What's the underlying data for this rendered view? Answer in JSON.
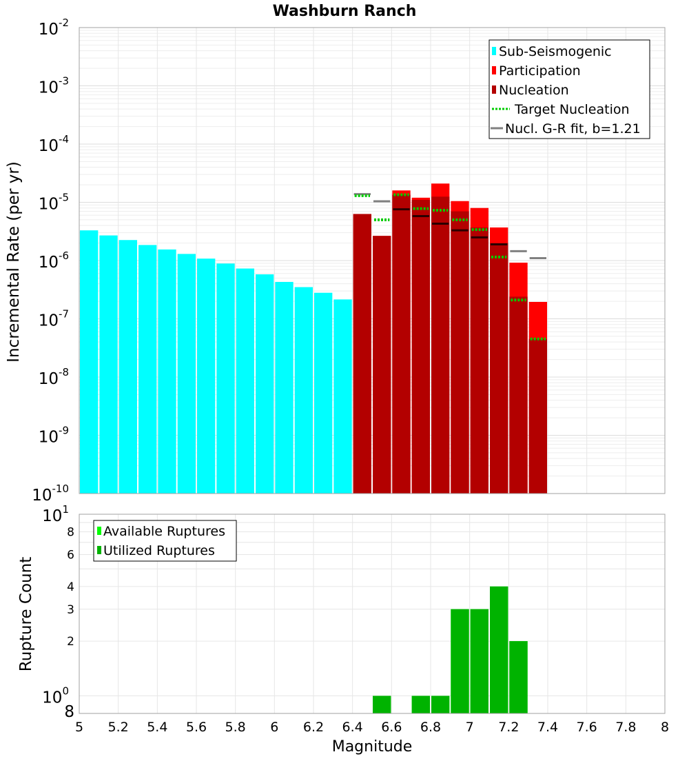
{
  "chart_data": [
    {
      "type": "bar",
      "title": "Washburn Ranch",
      "xlabel": "Magnitude",
      "ylabel": "Incremental Rate (per yr)",
      "yscale": "log",
      "ylim": [
        1e-10,
        0.01
      ],
      "xlim": [
        5,
        8
      ],
      "y_tick_exponents": [
        "-2",
        "-3",
        "-4",
        "-5",
        "-6",
        "-7",
        "-8",
        "-9",
        "-10"
      ],
      "y_tick_base": "10",
      "grid": true,
      "legend_position": "top-right",
      "legend": [
        "Sub-Seismogenic",
        "Participation",
        "Nucleation",
        "Target Nucleation",
        "Nucl. G-R fit, b=1.21"
      ],
      "bin_width": 0.1,
      "series": [
        {
          "name": "Sub-Seismogenic",
          "color": "#00ffff",
          "x": [
            5.05,
            5.15,
            5.25,
            5.35,
            5.45,
            5.55,
            5.65,
            5.75,
            5.85,
            5.95,
            6.05,
            6.15,
            6.25,
            6.35
          ],
          "values": [
            3.3e-06,
            2.7e-06,
            2.25e-06,
            1.85e-06,
            1.55e-06,
            1.3e-06,
            1.08e-06,
            8.9e-07,
            7.3e-07,
            5.8e-07,
            4.3e-07,
            3.5e-07,
            2.8e-07,
            2.15e-07
          ]
        },
        {
          "name": "Participation",
          "color": "#ff0000",
          "x": [
            6.45,
            6.55,
            6.65,
            6.75,
            6.85,
            6.95,
            7.05,
            7.15,
            7.25,
            7.35
          ],
          "values": [
            6.3e-06,
            2.65e-06,
            1.6e-05,
            1.2e-05,
            2.1e-05,
            1.05e-05,
            8e-06,
            3.7e-06,
            9.2e-07,
            1.95e-07
          ]
        },
        {
          "name": "Nucleation",
          "color": "#b30000",
          "x": [
            6.45,
            6.55,
            6.65,
            6.75,
            6.85,
            6.95,
            7.05,
            7.15,
            7.25,
            7.35
          ],
          "values": [
            6.3e-06,
            2.65e-06,
            1.35e-05,
            1.1e-05,
            1.25e-05,
            7e-06,
            3.7e-06,
            2e-06,
            2.4e-07,
            4.5e-08
          ]
        },
        {
          "name": "Target Nucleation",
          "color": "#00cc00",
          "x": [
            6.45,
            6.55,
            6.65,
            6.75,
            6.85,
            6.95,
            7.05,
            7.15,
            7.25,
            7.35
          ],
          "values": [
            1.3e-05,
            5e-06,
            1.35e-05,
            7.8e-06,
            7.3e-06,
            5e-06,
            3.4e-06,
            1.15e-06,
            2.1e-07,
            4.5e-08
          ]
        },
        {
          "name": "Nucl. G-R fit, b=1.21",
          "color": "#808080",
          "x": [
            6.45,
            6.55,
            6.65,
            6.75,
            6.85,
            6.95,
            7.05,
            7.15,
            7.25,
            7.35
          ],
          "values": [
            1.38e-05,
            1.04e-05,
            7.6e-06,
            5.8e-06,
            4.3e-06,
            3.3e-06,
            2.5e-06,
            1.9e-06,
            1.45e-06,
            1.1e-06
          ]
        }
      ]
    },
    {
      "type": "bar",
      "xlabel": "Magnitude",
      "ylabel": "Rupture Count",
      "yscale": "log",
      "ylim": [
        0.8,
        10
      ],
      "xlim": [
        5,
        8
      ],
      "x_ticks": [
        "5",
        "5.2",
        "5.4",
        "5.6",
        "5.8",
        "6",
        "6.2",
        "6.4",
        "6.6",
        "6.8",
        "7",
        "7.2",
        "7.4",
        "7.6",
        "7.8",
        "8"
      ],
      "y_minor_ticks": [
        "8",
        "6",
        "4",
        "3",
        "2",
        "8"
      ],
      "y_major_ticks": [
        {
          "base": "10",
          "exp": "1"
        },
        {
          "base": "10",
          "exp": "0"
        }
      ],
      "grid": true,
      "legend_position": "top-left",
      "legend": [
        "Available Ruptures",
        "Utilized Ruptures"
      ],
      "bin_width": 0.1,
      "series": [
        {
          "name": "Available Ruptures",
          "color": "#00ff00",
          "x": [
            6.55,
            6.75,
            6.85,
            6.95,
            7.05,
            7.15,
            7.25
          ],
          "values": [
            1,
            1,
            1,
            3,
            3,
            4,
            2
          ]
        },
        {
          "name": "Utilized Ruptures",
          "color": "#00b300",
          "x": [
            6.55,
            6.75,
            6.85,
            6.95,
            7.05,
            7.15,
            7.25
          ],
          "values": [
            1,
            1,
            1,
            3,
            3,
            4,
            2
          ]
        }
      ]
    }
  ]
}
